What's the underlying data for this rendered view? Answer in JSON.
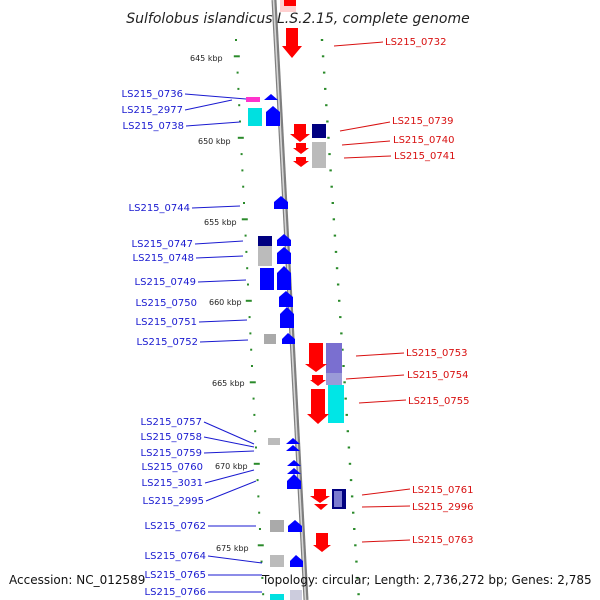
{
  "title": "Sulfolobus islandicus L.S.2.15, complete genome",
  "footer": {
    "accession": "Accession: NC_012589",
    "topology": "Topology: circular; Length: 2,736,272 bp; Genes: 2,785"
  },
  "colors": {
    "forward_strand": "#0000ff",
    "forward_strand_dark": "#000080",
    "reverse_strand": "#ff0000",
    "similarity_gray": "#bbbbbb",
    "similarity_cyan": "#00e6e6",
    "similarity_purple": "#7a6fd0",
    "rna_magenta": "#ff33cc",
    "left_label": "#1a1ad0",
    "right_label": "#d81010",
    "ticks": "#2a8a2a",
    "backbone": "#888888"
  },
  "kbp_marks": [
    "645 kbp",
    "650 kbp",
    "655 kbp",
    "660 kbp",
    "665 kbp",
    "670 kbp",
    "675 kbp"
  ],
  "left_labels": [
    "LS215_0736",
    "LS215_2977",
    "LS215_0738",
    "LS215_0744",
    "LS215_0747",
    "LS215_0748",
    "LS215_0749",
    "LS215_0750",
    "LS215_0751",
    "LS215_0752",
    "LS215_0757",
    "LS215_0758",
    "LS215_0759",
    "LS215_0760",
    "LS215_3031",
    "LS215_2995",
    "LS215_0762",
    "LS215_0764",
    "LS215_0765",
    "LS215_0766"
  ],
  "right_labels": [
    "LS215_0732",
    "LS215_0739",
    "LS215_0740",
    "LS215_0741",
    "LS215_0753",
    "LS215_0754",
    "LS215_0755",
    "LS215_0761",
    "LS215_2996",
    "LS215_0763"
  ]
}
